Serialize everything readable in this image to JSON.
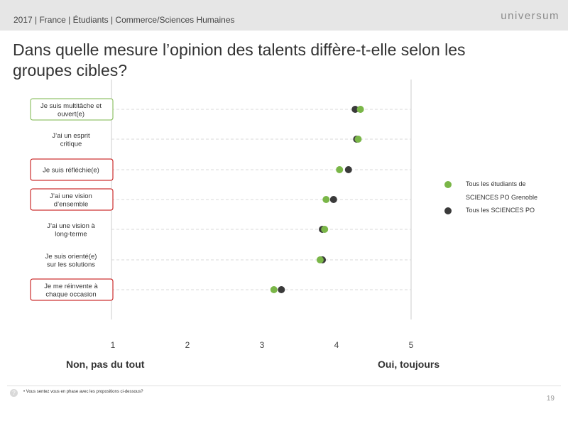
{
  "header": {
    "breadcrumb": "2017 | France | Étudiants | Commerce/Sciences Humaines",
    "brand": "universum"
  },
  "title": "Dans quelle mesure l’opinion des talents diffère-t-elle selon les groupes cibles?",
  "chart_data": {
    "type": "scatter",
    "orientation": "horizontal-dot",
    "title": "",
    "categories": [
      "Je suis multitâche et ouvert(e)",
      "J’ai un esprit critique",
      "Je suis réfléchie(e)",
      "J’ai une vision d’ensemble",
      "J’ai une vision à long-terme",
      "Je suis orienté(e) sur les solutions",
      "Je me réinvente à chaque occasion"
    ],
    "highlight": [
      "green",
      "none",
      "red",
      "red",
      "none",
      "none",
      "red"
    ],
    "series": [
      {
        "name": "Tous les étudiants de SCIENCES PO Grenoble",
        "color": "#7ab648",
        "values": [
          4.32,
          4.29,
          4.04,
          3.86,
          3.84,
          3.78,
          3.16
        ]
      },
      {
        "name": "Tous les SCIENCES PO",
        "color": "#3a3a3a",
        "values": [
          4.25,
          4.27,
          4.16,
          3.96,
          3.81,
          3.81,
          3.26
        ]
      }
    ],
    "xlim": [
      1,
      5
    ],
    "x_ticks": [
      "1",
      "2",
      "3",
      "4",
      "5"
    ],
    "x_min_label": "Non, pas du tout",
    "x_max_label": "Oui, toujours",
    "colors": {
      "green_frame": "#7ab648",
      "red_frame": "#c00000",
      "guide": "#d9d9d9",
      "axis": "#cccccc"
    },
    "legend_position": "right"
  },
  "footer": {
    "icon": "?",
    "note": "•  Vous sentez vous en phase avec les propositions ci-dessous?",
    "page": "19"
  }
}
